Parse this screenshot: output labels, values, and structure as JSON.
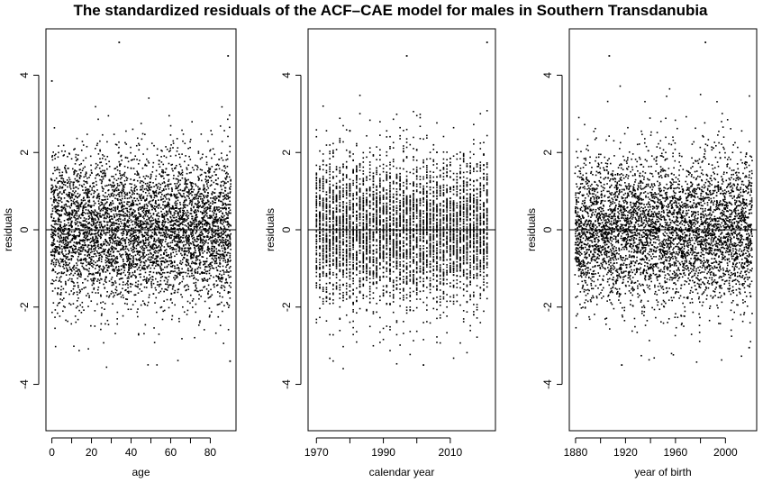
{
  "title": "The standardized residuals of the ACF–CAE model for males in Southern Transdanubia",
  "chart_data": [
    {
      "type": "scatter",
      "xlabel": "age",
      "ylabel": "residuals",
      "xlim": [
        -3,
        93
      ],
      "ylim": [
        -5.2,
        5.2
      ],
      "xticks": [
        0,
        20,
        40,
        60,
        80
      ],
      "yticks": [
        -4,
        -2,
        0,
        2,
        4
      ],
      "reference_line_y": 0,
      "grid": false,
      "x_range": [
        0,
        90
      ],
      "points_per_unit": 54,
      "notable_points": [
        {
          "x": 34,
          "y": 4.85
        },
        {
          "x": 89,
          "y": 4.5
        },
        {
          "x": 0,
          "y": 3.85
        },
        {
          "x": 90,
          "y": -3.4
        }
      ]
    },
    {
      "type": "scatter",
      "xlabel": "calendar year",
      "ylabel": "residuals",
      "xlim": [
        1967.5,
        2023.5
      ],
      "ylim": [
        -5.2,
        5.2
      ],
      "xticks": [
        1970,
        1990,
        2010
      ],
      "yticks": [
        -4,
        -2,
        0,
        2,
        4
      ],
      "reference_line_y": 0,
      "grid": false,
      "x_range": [
        1970,
        2021
      ],
      "points_per_unit": 91,
      "notable_points": [
        {
          "x": 2021,
          "y": 4.85
        },
        {
          "x": 1997,
          "y": 4.5
        },
        {
          "x": 2002,
          "y": -3.5
        }
      ]
    },
    {
      "type": "scatter",
      "xlabel": "year of birth",
      "ylabel": "residuals",
      "xlim": [
        1875,
        2025
      ],
      "ylim": [
        -5.2,
        5.2
      ],
      "xticks": [
        1880,
        1920,
        1960,
        2000
      ],
      "yticks": [
        -4,
        -2,
        0,
        2,
        4
      ],
      "reference_line_y": 0,
      "grid": false,
      "x_range": [
        1880,
        2021
      ],
      "points_per_unit": 33,
      "notable_points": [
        {
          "x": 1984,
          "y": 4.85
        },
        {
          "x": 1907,
          "y": 4.5
        },
        {
          "x": 1917,
          "y": -3.5
        },
        {
          "x": 2019,
          "y": -3.05
        }
      ]
    }
  ]
}
